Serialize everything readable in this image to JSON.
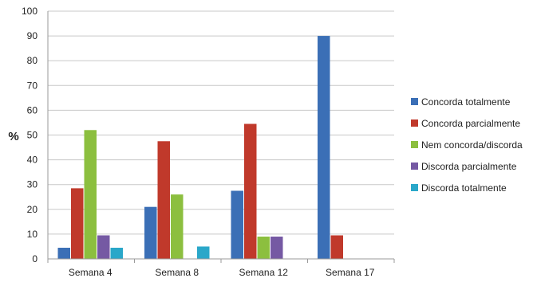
{
  "chart_data": {
    "type": "bar",
    "title": "",
    "xlabel": "",
    "ylabel": "%",
    "ylim": [
      0,
      100
    ],
    "yticks": [
      0,
      10,
      20,
      30,
      40,
      50,
      60,
      70,
      80,
      90,
      100
    ],
    "grid": true,
    "legend_position": "right",
    "categories": [
      "Semana 4",
      "Semana 8",
      "Semana 12",
      "Semana 17"
    ],
    "series": [
      {
        "name": "Concorda totalmente",
        "color": "#3b6fb6",
        "values": [
          4.5,
          21,
          27.5,
          90
        ]
      },
      {
        "name": "Concorda parcialmente",
        "color": "#c0392b",
        "values": [
          28.5,
          47.5,
          54.5,
          9.5
        ]
      },
      {
        "name": "Nem concorda/discorda",
        "color": "#8cbf3f",
        "values": [
          52,
          26,
          9,
          0
        ]
      },
      {
        "name": "Discorda parcialmente",
        "color": "#7559a3",
        "values": [
          9.5,
          0,
          9,
          0
        ]
      },
      {
        "name": "Discorda totalmente",
        "color": "#2aa7c9",
        "values": [
          4.5,
          5,
          0,
          0
        ]
      }
    ]
  }
}
